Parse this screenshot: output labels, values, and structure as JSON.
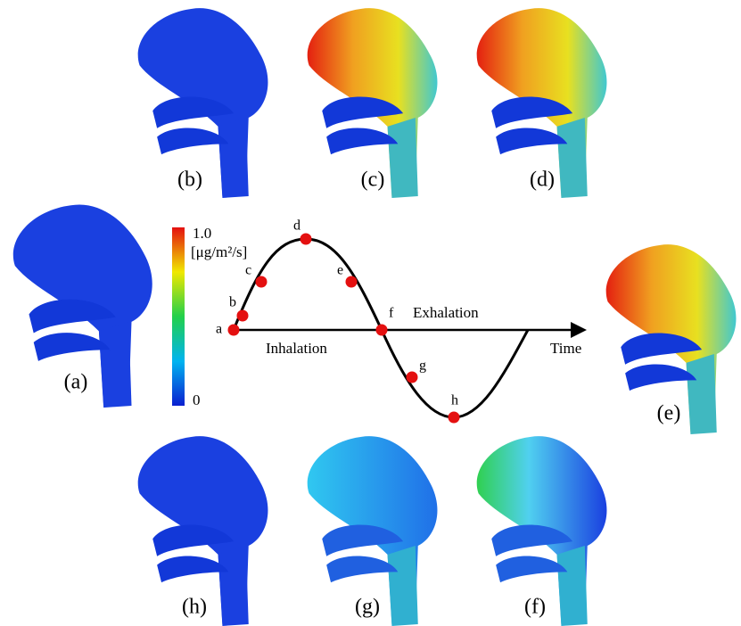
{
  "panels": [
    "(b)",
    "(c)",
    "(d)",
    "(a)",
    "(e)",
    "(h)",
    "(g)",
    "(f)"
  ],
  "colorbar": {
    "max": "1.0",
    "unit": "[μg/m²/s]",
    "min": "0"
  },
  "cycle": {
    "points": [
      "a",
      "b",
      "c",
      "d",
      "e",
      "f",
      "g",
      "h"
    ],
    "exhalation": "Exhalation",
    "inhalation": "Inhalation",
    "axis_label": "Time"
  }
}
